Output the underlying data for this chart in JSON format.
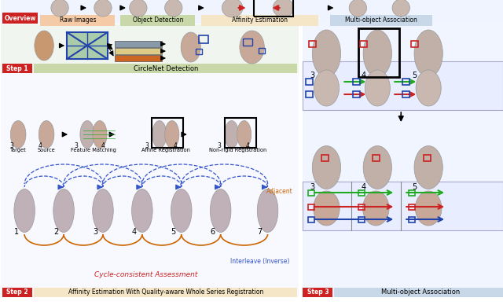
{
  "fig_width": 6.4,
  "fig_height": 3.88,
  "dpi": 100,
  "bg_color": "#ffffff",
  "overview_label": "Overview",
  "overview_color": "#cc2222",
  "step1_label": "Step 1",
  "step1_color": "#cc2222",
  "step2_label": "Step 2",
  "step2_color": "#cc2222",
  "step3_label": "Step 3",
  "step3_color": "#cc2222",
  "raw_images_label": "Raw Images",
  "raw_images_bg": "#f5cba7",
  "object_detection_label": "Object Detection",
  "object_detection_bg": "#c8d8a8",
  "affinity_estimation_label": "Affinity Estimation",
  "affinity_estimation_bg": "#f5e6c8",
  "multi_object_label": "Multi-object Association",
  "multi_object_bg": "#c8d8e8",
  "circlenet_label": "CircleNet Detection",
  "circlenet_bg": "#c8d8a8",
  "step2_desc": "Affinity Estimation With Quality-aware Whole Series Registration",
  "step2_desc_bg": "#f5e6c8",
  "step3_desc": "Multi-object Association",
  "step3_desc_bg": "#c8d8e8",
  "cycle_consistent_label": "Cycle-consistent Assessment",
  "cycle_consistent_color": "#cc2222",
  "interleave_label": "Interleave (Inverse)",
  "interleave_color": "#3355cc",
  "adjacent_label": "Adjacent",
  "adjacent_color": "#cc6600",
  "wsi_color": "#c8b8b0",
  "wsi_border": "#999999",
  "step1_bg": "#c8d8a8",
  "step2_bg": "#f5e6c8",
  "step3_bg": "#c8d8e8",
  "blue_box_color": "#2244aa",
  "red_box_color": "#cc2222",
  "green_line_color": "#22aa22",
  "red_arrow_color": "#cc2222",
  "blue_arrow_color": "#2244aa",
  "orange_arrow_color": "#cc6600",
  "nn_box1_color": "#8899aa",
  "nn_box2_color": "#ddcc88",
  "nn_box3_color": "#cc6622",
  "encoder_color": "#aaccaa",
  "encoder_border": "#2244aa",
  "black_box_color": "#222222"
}
